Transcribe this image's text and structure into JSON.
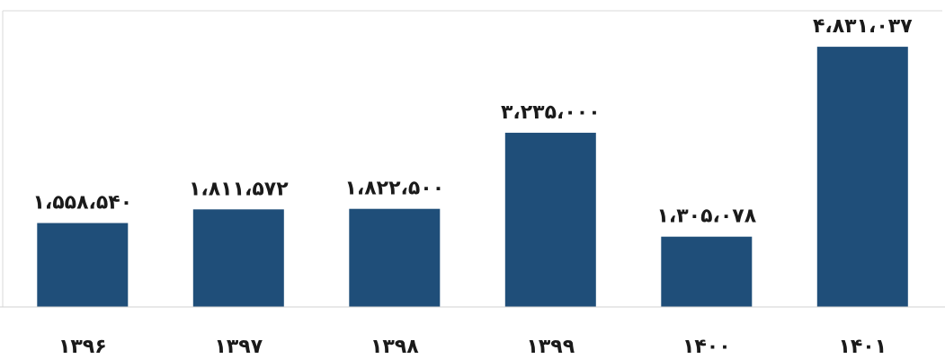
{
  "chart_data": {
    "type": "bar",
    "title": "",
    "xlabel": "",
    "ylabel": "",
    "categories": [
      "۱۳۹۶",
      "۱۳۹۷",
      "۱۳۹۸",
      "۱۳۹۹",
      "۱۴۰۰",
      "۱۴۰۱"
    ],
    "values": [
      1558540,
      1811572,
      1822500,
      3235000,
      1305078,
      4831037
    ],
    "value_labels": [
      "۱،۵۵۸،۵۴۰",
      "۱،۸۱۱،۵۷۲",
      "۱،۸۲۲،۵۰۰",
      "۳،۲۳۵،۰۰۰",
      "۱،۳۰۵،۰۷۸",
      "۴،۸۳۱،۰۳۷"
    ],
    "ylim": [
      0,
      5500000
    ],
    "grid": false,
    "legend": "none",
    "bar_color": "#1f4e79"
  }
}
